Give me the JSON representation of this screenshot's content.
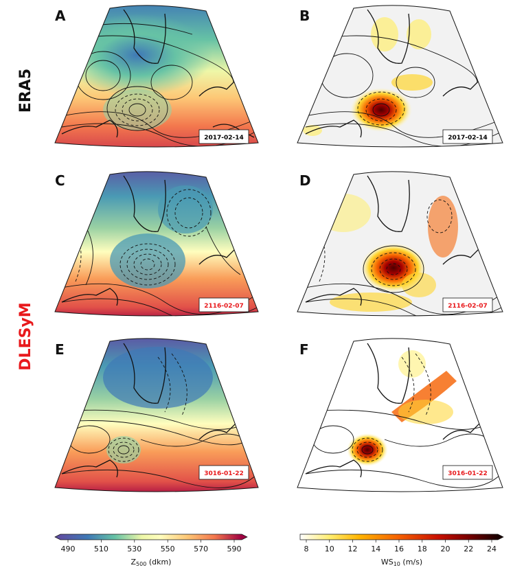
{
  "rows": {
    "era5": "ERA5",
    "dlesym": "DLESyM"
  },
  "panels": [
    {
      "letter": "A",
      "date": "2017-02-14",
      "date_color": "#111111",
      "kind": "z500"
    },
    {
      "letter": "B",
      "date": "2017-02-14",
      "date_color": "#111111",
      "kind": "ws"
    },
    {
      "letter": "C",
      "date": "2116-02-07",
      "date_color": "#e8191c",
      "kind": "z500"
    },
    {
      "letter": "D",
      "date": "2116-02-07",
      "date_color": "#e8191c",
      "kind": "ws"
    },
    {
      "letter": "E",
      "date": "3016-01-22",
      "date_color": "#e8191c",
      "kind": "z500"
    },
    {
      "letter": "F",
      "date": "3016-01-22",
      "date_color": "#e8191c",
      "kind": "ws"
    }
  ],
  "colorbars": {
    "z500": {
      "ticks": [
        "490",
        "510",
        "530",
        "550",
        "570",
        "590"
      ],
      "label_main": "Z",
      "label_sub": "500",
      "label_unit": " (dkm)",
      "colors": [
        "#5e4fa2",
        "#3f79b6",
        "#4a9ab4",
        "#66c2a5",
        "#9ad1a3",
        "#c9e99e",
        "#eef7a8",
        "#fffebe",
        "#fee592",
        "#fdc776",
        "#f99d59",
        "#f3774d",
        "#e25249",
        "#c92f4c",
        "#9e0142"
      ]
    },
    "ws": {
      "ticks": [
        "8",
        "10",
        "12",
        "14",
        "16",
        "18",
        "20",
        "22",
        "24"
      ],
      "label_main": "WS",
      "label_sub": "10",
      "label_unit": " (m/s)",
      "colors": [
        "#ffffff",
        "#fff8c0",
        "#ffee70",
        "#ffd630",
        "#ffb400",
        "#ff8c00",
        "#f56000",
        "#e03000",
        "#c81000",
        "#a50000",
        "#7a0000",
        "#4d0000",
        "#1a0000"
      ]
    }
  },
  "colors": {
    "dlesym_red": "#e8191c",
    "land_line": "#111111",
    "ws_background": "#f2f2f2"
  }
}
